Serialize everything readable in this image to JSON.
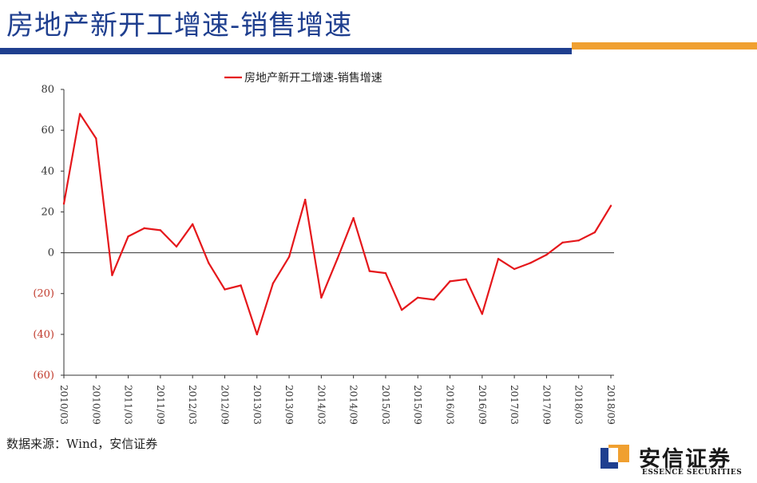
{
  "page": {
    "title": "房地产新开工增速-销售增速"
  },
  "source": "数据来源：Wind，安信证券",
  "logo": {
    "cn": "安信证券",
    "en": "ESSENCE SECURITIES"
  },
  "colors": {
    "title": "#1f3f8f",
    "bar_blue": "#1f3f8f",
    "bar_orange": "#f0a030",
    "series": "#e5171b",
    "neg_tick": "#c0392b"
  },
  "chart_data": {
    "type": "line",
    "title": "",
    "legend": "房地产新开工增速-销售增速",
    "xlabel": "",
    "ylabel": "",
    "ylim": [
      -60,
      80
    ],
    "yticks": [
      "80",
      "60",
      "40",
      "20",
      "0",
      "(20)",
      "(40)",
      "(60)"
    ],
    "ytick_values": [
      80,
      60,
      40,
      20,
      0,
      -20,
      -40,
      -60
    ],
    "xticks": [
      "2010/03",
      "2010/09",
      "2011/03",
      "2011/09",
      "2012/03",
      "2012/09",
      "2013/03",
      "2013/09",
      "2014/03",
      "2014/09",
      "2015/03",
      "2015/09",
      "2016/03",
      "2016/09",
      "2017/03",
      "2017/09",
      "2018/03",
      "2018/09"
    ],
    "x": [
      "2010/03",
      "2010/06",
      "2010/09",
      "2010/12",
      "2011/03",
      "2011/06",
      "2011/09",
      "2011/12",
      "2012/03",
      "2012/06",
      "2012/09",
      "2012/12",
      "2013/03",
      "2013/06",
      "2013/09",
      "2013/12",
      "2014/03",
      "2014/06",
      "2014/09",
      "2014/12",
      "2015/03",
      "2015/06",
      "2015/09",
      "2015/12",
      "2016/03",
      "2016/06",
      "2016/09",
      "2016/12",
      "2017/03",
      "2017/06",
      "2017/09",
      "2017/12",
      "2018/03",
      "2018/06",
      "2018/09"
    ],
    "series": [
      {
        "name": "房地产新开工增速-销售增速",
        "values": [
          24,
          68,
          56,
          -11,
          8,
          12,
          11,
          3,
          14,
          -5,
          -18,
          -16,
          -40,
          -15,
          -2,
          26,
          -22,
          -3,
          17,
          -9,
          -10,
          -28,
          -22,
          -23,
          -14,
          -13,
          -30,
          -3,
          -8,
          -5,
          -1,
          5,
          6,
          10,
          23
        ]
      }
    ]
  }
}
